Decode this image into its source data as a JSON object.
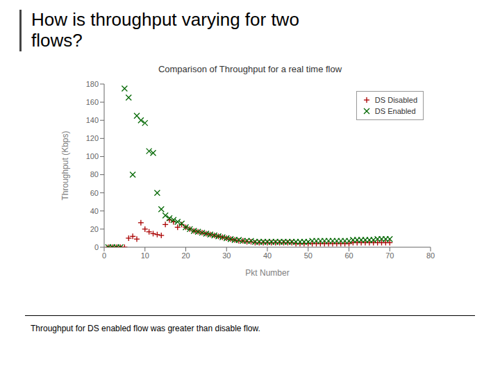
{
  "chart_data": {
    "type": "scatter",
    "title": "Comparison of Throughput for a real time flow",
    "xlabel": "Pkt Number",
    "ylabel": "Throughput (Kbps)",
    "xlim": [
      0,
      80
    ],
    "ylim": [
      0,
      180
    ],
    "xticks": [
      0,
      10,
      20,
      30,
      40,
      50,
      60,
      70,
      80
    ],
    "yticks": [
      0,
      20,
      40,
      60,
      80,
      100,
      120,
      140,
      160,
      180
    ],
    "grid": false,
    "legend": "upper right",
    "annotations": [
      "How is throughput varying for two\nflows?",
      "Throughput for DS enabled flow was greater than disable flow."
    ],
    "series": [
      {
        "name": "DS Disabled",
        "color": "#aa0000",
        "marker": "+",
        "x": [
          1,
          2,
          3,
          4,
          5,
          6,
          7,
          8,
          9,
          10,
          11,
          12,
          13,
          14,
          15,
          16,
          17,
          18,
          19,
          20,
          21,
          22,
          23,
          24,
          25,
          26,
          27,
          28,
          29,
          30,
          31,
          32,
          33,
          34,
          35,
          36,
          37,
          38,
          39,
          40,
          41,
          42,
          43,
          44,
          45,
          46,
          47,
          48,
          49,
          50,
          51,
          52,
          53,
          54,
          55,
          56,
          57,
          58,
          59,
          60,
          61,
          62,
          63,
          64,
          65,
          66,
          67,
          68,
          69,
          70
        ],
        "values": [
          0,
          0,
          0,
          0,
          0,
          10,
          12,
          9,
          27,
          20,
          17,
          15,
          14,
          13,
          25,
          30,
          28,
          22,
          25,
          22,
          20,
          18,
          17,
          16,
          15,
          14,
          13,
          12,
          11,
          10,
          9,
          8,
          7,
          7,
          6,
          6,
          5,
          5,
          5,
          5,
          5,
          5,
          5,
          5,
          5,
          5,
          4,
          4,
          4,
          4,
          4,
          4,
          4,
          4,
          4,
          4,
          4,
          4,
          4,
          4,
          5,
          5,
          5,
          5,
          5,
          5,
          5,
          5,
          5,
          5
        ]
      },
      {
        "name": "DS Enabled",
        "color": "#006600",
        "marker": "x",
        "x": [
          1,
          2,
          3,
          4,
          5,
          6,
          7,
          8,
          9,
          10,
          11,
          12,
          13,
          14,
          15,
          16,
          17,
          18,
          19,
          20,
          21,
          22,
          23,
          24,
          25,
          26,
          27,
          28,
          29,
          30,
          31,
          32,
          33,
          34,
          35,
          36,
          37,
          38,
          39,
          40,
          41,
          42,
          43,
          44,
          45,
          46,
          47,
          48,
          49,
          50,
          51,
          52,
          53,
          54,
          55,
          56,
          57,
          58,
          59,
          60,
          61,
          62,
          63,
          64,
          65,
          66,
          67,
          68,
          69,
          70
        ],
        "values": [
          0,
          0,
          0,
          0,
          175,
          165,
          80,
          145,
          140,
          137,
          106,
          104,
          60,
          42,
          35,
          32,
          30,
          28,
          26,
          22,
          20,
          18,
          17,
          16,
          15,
          14,
          13,
          12,
          11,
          10,
          9,
          8,
          8,
          7,
          7,
          7,
          6,
          6,
          6,
          6,
          6,
          6,
          6,
          6,
          6,
          6,
          6,
          6,
          6,
          6,
          7,
          7,
          7,
          7,
          7,
          7,
          7,
          7,
          7,
          7,
          8,
          8,
          8,
          8,
          8,
          8,
          9,
          9,
          9,
          9
        ]
      }
    ]
  }
}
